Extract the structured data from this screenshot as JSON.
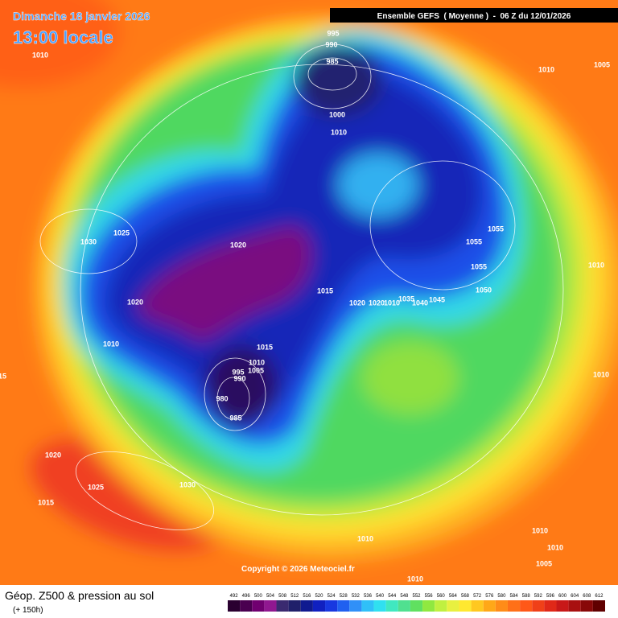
{
  "header": {
    "date": "Dimanche 18 janvier 2026",
    "time": "13:00 locale",
    "run": "Ensemble GEFS  ( Moyenne )  -  06 Z du 12/01/2026"
  },
  "footer": {
    "title": "Géop. Z500 & pression au sol",
    "lead": "(+ 150h)",
    "copyright": "Copyright © 2026 Meteociel.fr"
  },
  "isobars": [
    995,
    990,
    985,
    1010,
    1010,
    1005,
    1000,
    1010,
    1055,
    1055,
    1055,
    1050,
    1030,
    1025,
    1020,
    1020,
    1015,
    1020,
    1020,
    1010,
    1035,
    1040,
    1045,
    1010,
    1015,
    1010,
    1005,
    995,
    990,
    980,
    985,
    1015,
    1010,
    1020,
    1025,
    1030,
    1015,
    1010,
    1010,
    1010,
    1005,
    1010,
    1010
  ],
  "legend": {
    "values": [
      492,
      496,
      500,
      504,
      508,
      512,
      516,
      520,
      524,
      528,
      532,
      536,
      540,
      544,
      548,
      552,
      556,
      560,
      564,
      568,
      572,
      576,
      580,
      584,
      588,
      592,
      596,
      600,
      604,
      608,
      612
    ],
    "colors": [
      "#2a0030",
      "#4a0050",
      "#700070",
      "#901890",
      "#3a2a70",
      "#20206a",
      "#101a90",
      "#1020c0",
      "#1838e0",
      "#2060f0",
      "#3090f8",
      "#30c0f8",
      "#30e0f0",
      "#40e8c0",
      "#50e090",
      "#60e060",
      "#90e840",
      "#c0f040",
      "#e8f040",
      "#ffe830",
      "#ffc820",
      "#ffa818",
      "#ff8c18",
      "#ff7018",
      "#ff5818",
      "#f04018",
      "#e02818",
      "#c81818",
      "#a81010",
      "#880808",
      "#600000"
    ]
  }
}
